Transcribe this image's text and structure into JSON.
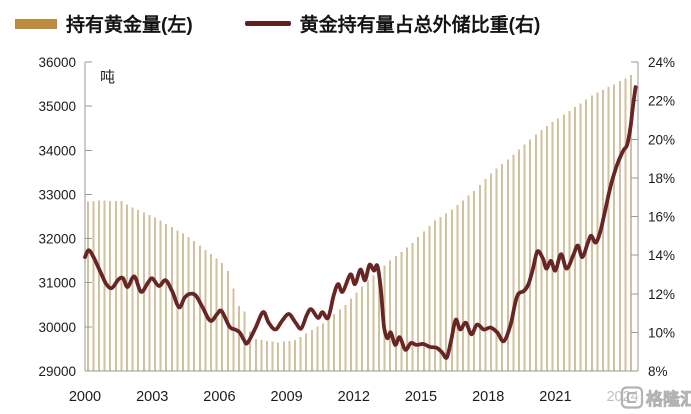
{
  "legend": {
    "bar_label": "持有黄金量(左)",
    "line_label": "黄金持有量占总外储比重(右)"
  },
  "watermark": {
    "text": "格隆汇"
  },
  "colors": {
    "bar": "#d0c29c",
    "line": "#682523",
    "axis": "#9a9a9a",
    "label": "#1c1c1c",
    "legend_bar_swatch": "#bd8c3c",
    "legend_line_swatch": "#5d2320",
    "watermark": "#b3b3b3"
  },
  "chart_data": {
    "type": "combo-bar-line",
    "title": "",
    "x_axis": {
      "range": [
        2000,
        2024.7
      ],
      "tick_years": [
        2000,
        2003,
        2006,
        2009,
        2012,
        2015,
        2018,
        2021,
        2024
      ],
      "tick_labels": [
        "2000",
        "2003",
        "2006",
        "2009",
        "2012",
        "2015",
        "2018",
        "2021",
        "2024"
      ]
    },
    "left_axis": {
      "unit": "吨",
      "min": 29000,
      "max": 36000,
      "step": 1000,
      "ticks": [
        29000,
        30000,
        31000,
        32000,
        33000,
        34000,
        35000,
        36000
      ]
    },
    "right_axis": {
      "min": 8,
      "max": 24,
      "step": 2,
      "tick_values": [
        8,
        10,
        12,
        14,
        16,
        18,
        20,
        22,
        24
      ],
      "tick_labels": [
        "8%",
        "10%",
        "12%",
        "14%",
        "16%",
        "18%",
        "20%",
        "22%",
        "24%"
      ]
    },
    "series": [
      {
        "name": "持有黄金量(左)",
        "type": "bar",
        "axis": "left",
        "unit": "吨",
        "points": [
          [
            2000.0,
            32840
          ],
          [
            2000.25,
            32850
          ],
          [
            2000.5,
            32860
          ],
          [
            2000.75,
            32860
          ],
          [
            2001.0,
            32855
          ],
          [
            2001.25,
            32850
          ],
          [
            2001.5,
            32850
          ],
          [
            2001.75,
            32775
          ],
          [
            2002.0,
            32700
          ],
          [
            2002.25,
            32645
          ],
          [
            2002.5,
            32590
          ],
          [
            2002.75,
            32535
          ],
          [
            2003.0,
            32480
          ],
          [
            2003.25,
            32405
          ],
          [
            2003.5,
            32335
          ],
          [
            2003.75,
            32260
          ],
          [
            2004.0,
            32185
          ],
          [
            2004.25,
            32115
          ],
          [
            2004.5,
            32040
          ],
          [
            2004.75,
            31940
          ],
          [
            2005.0,
            31845
          ],
          [
            2005.25,
            31745
          ],
          [
            2005.5,
            31645
          ],
          [
            2005.75,
            31550
          ],
          [
            2006.0,
            31450
          ],
          [
            2006.25,
            31270
          ],
          [
            2006.5,
            30870
          ],
          [
            2006.75,
            30470
          ],
          [
            2007.0,
            30350
          ],
          [
            2007.25,
            29900
          ],
          [
            2007.5,
            29720
          ],
          [
            2007.75,
            29700
          ],
          [
            2008.0,
            29685
          ],
          [
            2008.25,
            29670
          ],
          [
            2008.5,
            29650
          ],
          [
            2008.75,
            29665
          ],
          [
            2009.0,
            29685
          ],
          [
            2009.25,
            29700
          ],
          [
            2009.5,
            29775
          ],
          [
            2009.75,
            29850
          ],
          [
            2010.0,
            29930
          ],
          [
            2010.25,
            30005
          ],
          [
            2010.5,
            30080
          ],
          [
            2010.75,
            30185
          ],
          [
            2011.0,
            30290
          ],
          [
            2011.25,
            30395
          ],
          [
            2011.5,
            30500
          ],
          [
            2011.75,
            30640
          ],
          [
            2012.0,
            30775
          ],
          [
            2012.25,
            30915
          ],
          [
            2012.5,
            31050
          ],
          [
            2012.75,
            31165
          ],
          [
            2013.0,
            31275
          ],
          [
            2013.25,
            31390
          ],
          [
            2013.5,
            31500
          ],
          [
            2013.75,
            31600
          ],
          [
            2014.0,
            31700
          ],
          [
            2014.25,
            31800
          ],
          [
            2014.5,
            31900
          ],
          [
            2014.75,
            32030
          ],
          [
            2015.0,
            32160
          ],
          [
            2015.25,
            32290
          ],
          [
            2015.5,
            32405
          ],
          [
            2015.75,
            32490
          ],
          [
            2016.0,
            32570
          ],
          [
            2016.25,
            32655
          ],
          [
            2016.5,
            32755
          ],
          [
            2016.75,
            32865
          ],
          [
            2017.0,
            32975
          ],
          [
            2017.25,
            33080
          ],
          [
            2017.5,
            33215
          ],
          [
            2017.75,
            33345
          ],
          [
            2018.0,
            33470
          ],
          [
            2018.25,
            33585
          ],
          [
            2018.5,
            33690
          ],
          [
            2018.75,
            33795
          ],
          [
            2019.0,
            33900
          ],
          [
            2019.25,
            34015
          ],
          [
            2019.5,
            34135
          ],
          [
            2019.75,
            34250
          ],
          [
            2020.0,
            34360
          ],
          [
            2020.25,
            34455
          ],
          [
            2020.5,
            34545
          ],
          [
            2020.75,
            34640
          ],
          [
            2021.0,
            34725
          ],
          [
            2021.25,
            34810
          ],
          [
            2021.5,
            34895
          ],
          [
            2021.75,
            34975
          ],
          [
            2022.0,
            35060
          ],
          [
            2022.25,
            35155
          ],
          [
            2022.5,
            35240
          ],
          [
            2022.75,
            35305
          ],
          [
            2023.0,
            35370
          ],
          [
            2023.25,
            35430
          ],
          [
            2023.5,
            35495
          ],
          [
            2023.75,
            35565
          ],
          [
            2024.0,
            35630
          ],
          [
            2024.25,
            35700
          ]
        ]
      },
      {
        "name": "黄金持有量占总外储比重(右)",
        "type": "line",
        "axis": "right",
        "unit": "%",
        "points": [
          [
            2000.0,
            13.9
          ],
          [
            2000.17,
            14.25
          ],
          [
            2000.4,
            13.85
          ],
          [
            2000.7,
            13.1
          ],
          [
            2000.95,
            12.5
          ],
          [
            2001.2,
            12.3
          ],
          [
            2001.5,
            12.75
          ],
          [
            2001.7,
            12.8
          ],
          [
            2001.9,
            12.35
          ],
          [
            2002.2,
            12.9
          ],
          [
            2002.5,
            12.1
          ],
          [
            2002.8,
            12.55
          ],
          [
            2003.0,
            12.8
          ],
          [
            2003.3,
            12.4
          ],
          [
            2003.6,
            12.7
          ],
          [
            2003.9,
            12.1
          ],
          [
            2004.2,
            11.3
          ],
          [
            2004.45,
            11.8
          ],
          [
            2004.7,
            12.0
          ],
          [
            2004.95,
            11.9
          ],
          [
            2005.25,
            11.3
          ],
          [
            2005.6,
            10.6
          ],
          [
            2005.9,
            10.95
          ],
          [
            2006.1,
            11.1
          ],
          [
            2006.45,
            10.3
          ],
          [
            2006.7,
            10.15
          ],
          [
            2006.9,
            10.0
          ],
          [
            2007.1,
            9.6
          ],
          [
            2007.25,
            9.45
          ],
          [
            2007.6,
            10.2
          ],
          [
            2007.95,
            11.05
          ],
          [
            2008.2,
            10.5
          ],
          [
            2008.5,
            10.15
          ],
          [
            2008.8,
            10.6
          ],
          [
            2009.1,
            10.95
          ],
          [
            2009.4,
            10.5
          ],
          [
            2009.65,
            10.2
          ],
          [
            2009.9,
            10.9
          ],
          [
            2010.1,
            11.2
          ],
          [
            2010.4,
            10.75
          ],
          [
            2010.6,
            11.05
          ],
          [
            2010.85,
            10.75
          ],
          [
            2011.1,
            11.9
          ],
          [
            2011.3,
            12.5
          ],
          [
            2011.5,
            12.1
          ],
          [
            2011.85,
            13.0
          ],
          [
            2012.05,
            12.5
          ],
          [
            2012.3,
            13.25
          ],
          [
            2012.5,
            12.7
          ],
          [
            2012.7,
            13.5
          ],
          [
            2012.9,
            13.2
          ],
          [
            2013.05,
            13.45
          ],
          [
            2013.2,
            12.3
          ],
          [
            2013.35,
            10.3
          ],
          [
            2013.5,
            9.7
          ],
          [
            2013.65,
            10.0
          ],
          [
            2013.85,
            9.35
          ],
          [
            2014.05,
            9.75
          ],
          [
            2014.3,
            9.1
          ],
          [
            2014.55,
            9.45
          ],
          [
            2014.8,
            9.35
          ],
          [
            2015.1,
            9.4
          ],
          [
            2015.4,
            9.25
          ],
          [
            2015.7,
            9.2
          ],
          [
            2015.95,
            8.95
          ],
          [
            2016.15,
            8.7
          ],
          [
            2016.35,
            9.6
          ],
          [
            2016.55,
            10.65
          ],
          [
            2016.75,
            10.15
          ],
          [
            2017.0,
            10.5
          ],
          [
            2017.25,
            9.9
          ],
          [
            2017.5,
            10.4
          ],
          [
            2017.8,
            10.15
          ],
          [
            2018.1,
            10.25
          ],
          [
            2018.4,
            10.0
          ],
          [
            2018.7,
            9.55
          ],
          [
            2019.0,
            10.4
          ],
          [
            2019.2,
            11.5
          ],
          [
            2019.35,
            12.0
          ],
          [
            2019.6,
            12.15
          ],
          [
            2019.8,
            12.5
          ],
          [
            2020.0,
            13.3
          ],
          [
            2020.2,
            14.2
          ],
          [
            2020.45,
            13.8
          ],
          [
            2020.6,
            13.3
          ],
          [
            2020.8,
            13.7
          ],
          [
            2021.0,
            13.2
          ],
          [
            2021.25,
            14.05
          ],
          [
            2021.5,
            13.3
          ],
          [
            2021.8,
            14.0
          ],
          [
            2022.0,
            14.5
          ],
          [
            2022.2,
            13.9
          ],
          [
            2022.45,
            14.65
          ],
          [
            2022.6,
            15.0
          ],
          [
            2022.8,
            14.65
          ],
          [
            2023.0,
            15.2
          ],
          [
            2023.2,
            16.2
          ],
          [
            2023.45,
            17.5
          ],
          [
            2023.7,
            18.5
          ],
          [
            2023.9,
            19.1
          ],
          [
            2024.05,
            19.45
          ],
          [
            2024.2,
            19.7
          ],
          [
            2024.35,
            20.6
          ],
          [
            2024.45,
            21.6
          ],
          [
            2024.58,
            22.7
          ]
        ]
      }
    ],
    "layout": {
      "grid": false,
      "legend_position": "top-left"
    }
  }
}
